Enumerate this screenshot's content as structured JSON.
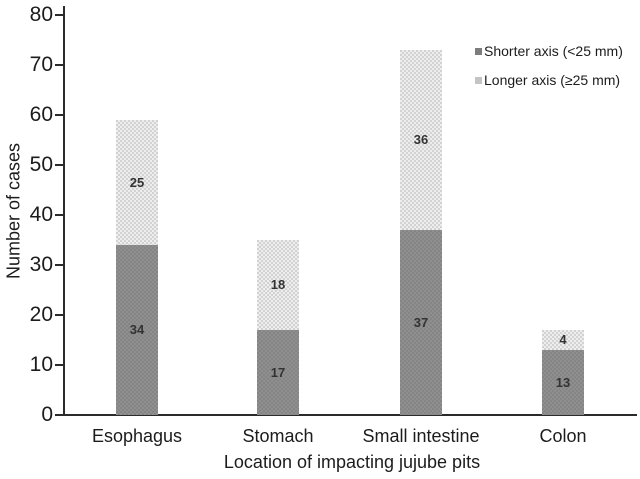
{
  "chart_data": {
    "type": "bar",
    "stacked": true,
    "categories": [
      "Esophagus",
      "Stomach",
      "Small intestine",
      "Colon"
    ],
    "series": [
      {
        "name": "Shorter axis (<25 mm)",
        "values": [
          34,
          17,
          37,
          13
        ],
        "color": "#8f8f8f",
        "legend_marker_color": "#7d7d7d",
        "pattern": "solid-dark"
      },
      {
        "name": "Longer axis (≥25 mm)",
        "values": [
          25,
          18,
          36,
          4
        ],
        "color": "#d2d2d2",
        "legend_marker_color": "#c4c4c4",
        "pattern": "dotted-light"
      }
    ],
    "xlabel": "Location of impacting jujube pits",
    "ylabel": "Number of cases",
    "ylim": [
      0,
      80
    ],
    "yticks": [
      0,
      10,
      20,
      30,
      40,
      50,
      60,
      70,
      80
    ],
    "grid": false,
    "legend_position": "top-right",
    "value_labels_inside_segments": true,
    "colors": {
      "axis": "#2b2b2b",
      "text": "#1c1c1c",
      "value_label": "#333333",
      "background": "#ffffff"
    }
  }
}
